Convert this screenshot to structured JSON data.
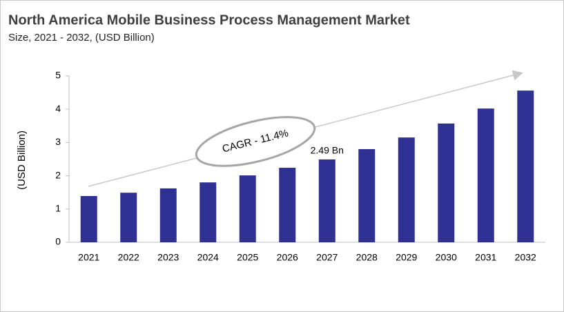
{
  "chart_data": {
    "type": "bar",
    "title": "North America Mobile Business Process Management Market",
    "subtitle": "Size, 2021 - 2032, (USD Billion)",
    "y_label": "(USD Billion)",
    "annotation": "CAGR - 11.4%",
    "categories": [
      "2021",
      "2022",
      "2023",
      "2024",
      "2025",
      "2026",
      "2027",
      "2028",
      "2029",
      "2030",
      "2031",
      "2032"
    ],
    "values": [
      1.39,
      1.49,
      1.62,
      1.8,
      2.01,
      2.24,
      2.49,
      2.8,
      3.15,
      3.57,
      4.02,
      4.56
    ],
    "value_labels": [
      null,
      null,
      null,
      null,
      null,
      null,
      "2.49 Bn",
      null,
      null,
      null,
      null,
      null
    ],
    "color": "#2e3192",
    "ylim": [
      0,
      5
    ],
    "yticks": [
      0,
      1,
      2,
      3,
      4,
      5
    ],
    "grid": false
  }
}
